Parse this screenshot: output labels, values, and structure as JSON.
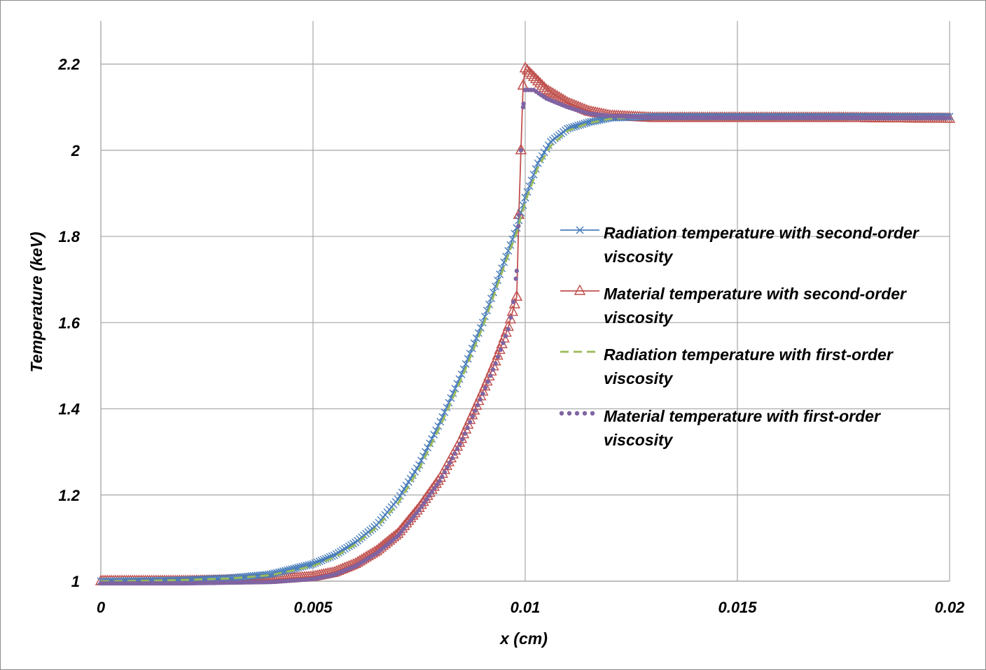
{
  "chart_data": {
    "type": "line",
    "title": "",
    "xlabel": "x (cm)",
    "ylabel": "Temperature (keV)",
    "xlim": [
      0,
      0.02
    ],
    "ylim": [
      1,
      2.3
    ],
    "x_ticks": [
      "0",
      "0.005",
      "0.01",
      "0.015",
      "0.02"
    ],
    "y_ticks": [
      "1",
      "1.2",
      "1.4",
      "1.6",
      "1.8",
      "2",
      "2.2"
    ],
    "grid": true,
    "legend_position": "right-center",
    "series": [
      {
        "name": "Radiation temperature with second-order viscosity",
        "color": "#4a7ebb",
        "marker": "x",
        "points": [
          [
            0,
            1.0
          ],
          [
            0.001,
            1.001
          ],
          [
            0.002,
            1.003
          ],
          [
            0.003,
            1.007
          ],
          [
            0.004,
            1.016
          ],
          [
            0.005,
            1.04
          ],
          [
            0.0055,
            1.06
          ],
          [
            0.006,
            1.09
          ],
          [
            0.0065,
            1.13
          ],
          [
            0.007,
            1.19
          ],
          [
            0.0075,
            1.27
          ],
          [
            0.008,
            1.37
          ],
          [
            0.0085,
            1.48
          ],
          [
            0.009,
            1.6
          ],
          [
            0.0095,
            1.74
          ],
          [
            0.0098,
            1.82
          ],
          [
            0.01,
            1.89
          ],
          [
            0.0103,
            1.97
          ],
          [
            0.0106,
            2.02
          ],
          [
            0.011,
            2.05
          ],
          [
            0.0115,
            2.065
          ],
          [
            0.012,
            2.075
          ],
          [
            0.013,
            2.078
          ],
          [
            0.015,
            2.078
          ],
          [
            0.0175,
            2.078
          ],
          [
            0.02,
            2.078
          ]
        ]
      },
      {
        "name": "Material temperature with second-order viscosity",
        "color": "#c0504d",
        "marker": "triangle",
        "points": [
          [
            0,
            1.0
          ],
          [
            0.002,
            1.0
          ],
          [
            0.004,
            1.003
          ],
          [
            0.005,
            1.01
          ],
          [
            0.0055,
            1.02
          ],
          [
            0.006,
            1.04
          ],
          [
            0.0065,
            1.07
          ],
          [
            0.007,
            1.11
          ],
          [
            0.0075,
            1.17
          ],
          [
            0.008,
            1.24
          ],
          [
            0.0085,
            1.33
          ],
          [
            0.009,
            1.44
          ],
          [
            0.0093,
            1.51
          ],
          [
            0.0096,
            1.59
          ],
          [
            0.0098,
            1.66
          ],
          [
            0.00985,
            1.85
          ],
          [
            0.0099,
            2.0
          ],
          [
            0.00995,
            2.15
          ],
          [
            0.01,
            2.19
          ],
          [
            0.0102,
            2.17
          ],
          [
            0.0105,
            2.14
          ],
          [
            0.011,
            2.11
          ],
          [
            0.0115,
            2.09
          ],
          [
            0.012,
            2.08
          ],
          [
            0.013,
            2.075
          ],
          [
            0.015,
            2.075
          ],
          [
            0.0175,
            2.075
          ],
          [
            0.02,
            2.073
          ]
        ]
      },
      {
        "name": "Radiation temperature with first-order viscosity",
        "color": "#9bbb59",
        "marker": "dash",
        "points": [
          [
            0,
            1.0
          ],
          [
            0.001,
            1.001
          ],
          [
            0.002,
            1.003
          ],
          [
            0.003,
            1.006
          ],
          [
            0.004,
            1.014
          ],
          [
            0.005,
            1.035
          ],
          [
            0.0055,
            1.055
          ],
          [
            0.006,
            1.085
          ],
          [
            0.0065,
            1.125
          ],
          [
            0.007,
            1.18
          ],
          [
            0.0075,
            1.26
          ],
          [
            0.008,
            1.36
          ],
          [
            0.0085,
            1.47
          ],
          [
            0.009,
            1.59
          ],
          [
            0.0095,
            1.73
          ],
          [
            0.0098,
            1.81
          ],
          [
            0.01,
            1.88
          ],
          [
            0.0103,
            1.96
          ],
          [
            0.0106,
            2.01
          ],
          [
            0.011,
            2.045
          ],
          [
            0.0115,
            2.063
          ],
          [
            0.012,
            2.073
          ],
          [
            0.013,
            2.078
          ],
          [
            0.015,
            2.078
          ],
          [
            0.0175,
            2.078
          ],
          [
            0.02,
            2.078
          ]
        ]
      },
      {
        "name": "Material temperature with first-order viscosity",
        "color": "#8064a2",
        "marker": "dot",
        "points": [
          [
            0,
            0.995
          ],
          [
            0.002,
            0.995
          ],
          [
            0.004,
            0.998
          ],
          [
            0.005,
            1.005
          ],
          [
            0.0055,
            1.015
          ],
          [
            0.006,
            1.035
          ],
          [
            0.0065,
            1.065
          ],
          [
            0.007,
            1.105
          ],
          [
            0.0075,
            1.165
          ],
          [
            0.008,
            1.235
          ],
          [
            0.0085,
            1.325
          ],
          [
            0.009,
            1.435
          ],
          [
            0.0093,
            1.505
          ],
          [
            0.0096,
            1.585
          ],
          [
            0.0097,
            1.63
          ],
          [
            0.0098,
            1.72
          ],
          [
            0.00985,
            1.85
          ],
          [
            0.0099,
            2.0
          ],
          [
            0.00995,
            2.1
          ],
          [
            0.01,
            2.14
          ],
          [
            0.0102,
            2.14
          ],
          [
            0.0105,
            2.12
          ],
          [
            0.011,
            2.1
          ],
          [
            0.0115,
            2.085
          ],
          [
            0.012,
            2.08
          ],
          [
            0.013,
            2.076
          ],
          [
            0.015,
            2.076
          ],
          [
            0.0175,
            2.076
          ],
          [
            0.02,
            2.076
          ]
        ]
      }
    ]
  }
}
